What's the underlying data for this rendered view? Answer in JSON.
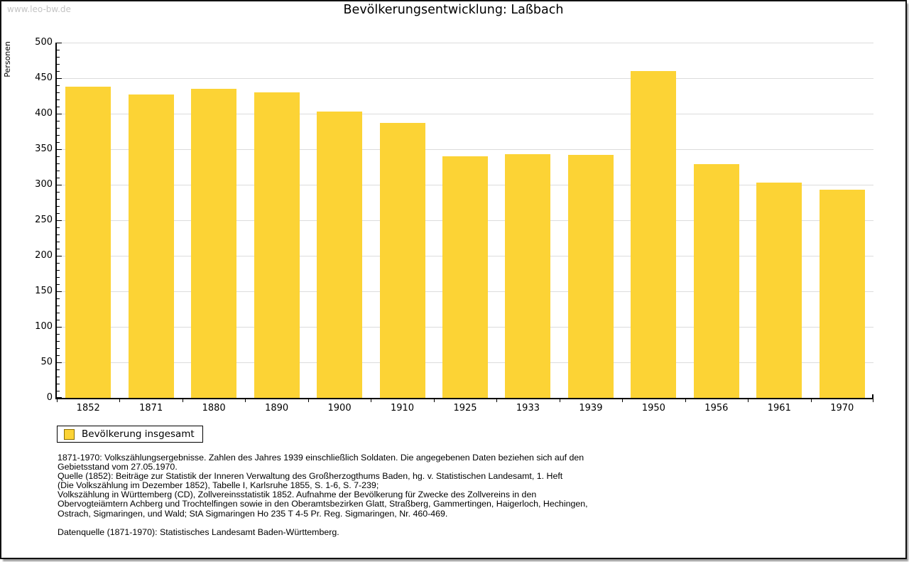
{
  "watermark": "www.leo-bw.de",
  "title": "Bevölkerungsentwicklung: Laßbach",
  "chart_data": {
    "type": "bar",
    "title": "Bevölkerungsentwicklung: Laßbach",
    "xlabel": "",
    "ylabel": "Personen",
    "categories": [
      "1852",
      "1871",
      "1880",
      "1890",
      "1900",
      "1910",
      "1925",
      "1933",
      "1939",
      "1950",
      "1956",
      "1961",
      "1970"
    ],
    "values": [
      438,
      427,
      435,
      430,
      403,
      387,
      340,
      343,
      342,
      460,
      329,
      303,
      293
    ],
    "series_name": "Bevölkerung insgesamt",
    "ylim": [
      0,
      500
    ],
    "yticks": [
      0,
      50,
      100,
      150,
      200,
      250,
      300,
      350,
      400,
      450,
      500
    ],
    "ytick_minor_step": 10,
    "grid": "horizontal-major",
    "bar_color": "#fcd335",
    "grid_color": "#dcdcdc",
    "axis_color": "#000000",
    "legend_position": "bottom-left"
  },
  "legend": {
    "label": "Bevölkerung insgesamt",
    "swatch_color": "#fcd335"
  },
  "footer_lines": [
    "1871-1970: Volkszählungsergebnisse. Zahlen des Jahres 1939 einschließlich Soldaten. Die angegebenen Daten beziehen sich auf den",
    "Gebietsstand vom 27.05.1970.",
    "Quelle (1852): Beiträge zur Statistik der Inneren Verwaltung des Großherzogthums Baden, hg. v. Statistischen Landesamt, 1. Heft",
    "(Die Volkszählung im Dezember 1852), Tabelle I, Karlsruhe 1855, S. 1-6, S. 7-239;",
    "Volkszählung in Württemberg (CD), Zollvereinsstatistik 1852. Aufnahme der Bevölkerung für Zwecke des Zollvereins in den",
    "Obervogteiämtern Achberg und Trochtelfingen sowie in den Oberamtsbezirken Glatt, Straßberg, Gammertingen, Haigerloch, Hechingen,",
    "Ostrach, Sigmaringen, und Wald; StA Sigmaringen Ho 235 T 4-5 Pr. Reg. Sigmaringen, Nr. 460-469.",
    "",
    "Datenquelle (1871-1970): Statistisches Landesamt Baden-Württemberg."
  ]
}
